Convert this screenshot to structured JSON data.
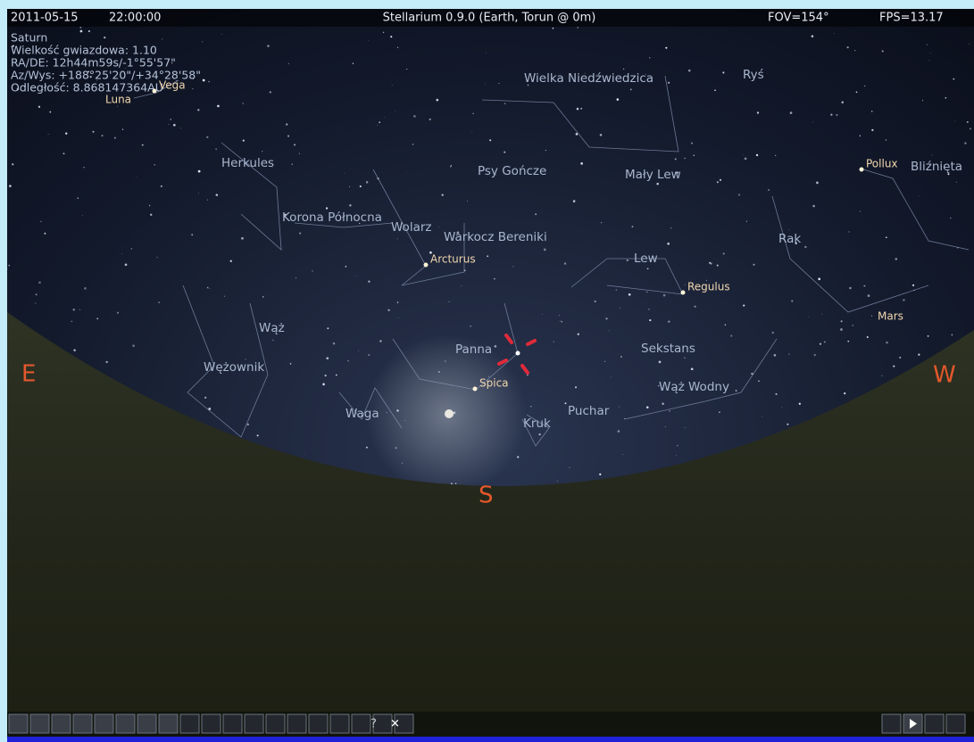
{
  "top_bar": {
    "date": "2011-05-15",
    "time": "22:00:00",
    "title": "Stellarium 0.9.0 (Earth, Torun @ 0m)",
    "fov": "FOV=154°",
    "fps": "FPS=13.17"
  },
  "object_info": [
    "Saturn",
    "Wielkość gwiazdowa: 1.10",
    "RA/DE: 12h44m59s/-1°55'57\"",
    "Az/Wys: +188°25'20\"/+34°28'58\"",
    "Odległość: 8.868147364AU"
  ],
  "constellations": [
    "Wielka Niedźwiedzica",
    "Ryś",
    "Herkules",
    "Psy Gończe",
    "Mały Lew",
    "Bliźnięta",
    "Korona Północna",
    "Wolarz",
    "Warkocz Bereniki",
    "Rak",
    "Lew",
    "Wąż",
    "Panna",
    "Sekstans",
    "Wężownik",
    "Waga",
    "Kruk",
    "Puchar",
    "Wąż Wodny"
  ],
  "stars": [
    "Vega",
    "Arcturus",
    "Spica",
    "Regulus",
    "Pollux"
  ],
  "planets": [
    "Luna",
    "Mars"
  ],
  "cardinals": [
    "E",
    "S",
    "W"
  ],
  "toolbar": {
    "help": "?",
    "close": "✕"
  }
}
